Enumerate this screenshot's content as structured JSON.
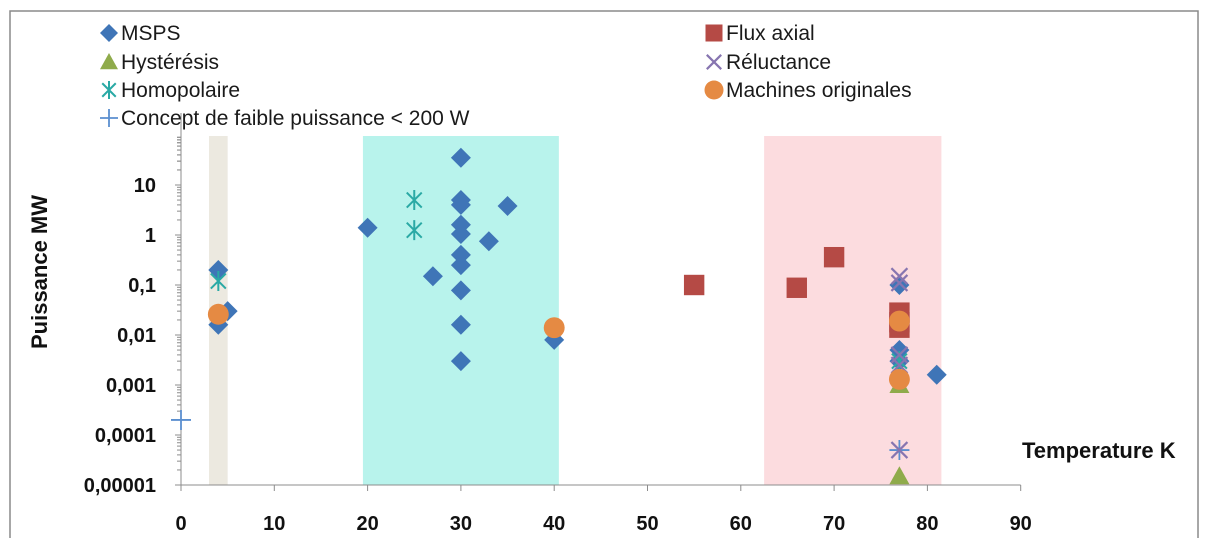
{
  "chart_data": {
    "type": "scatter",
    "xlabel": "Temperature K",
    "ylabel": "Puissance MW",
    "xlim": [
      0,
      90
    ],
    "ylim": [
      1e-05,
      100
    ],
    "y_scale": "log",
    "grid": false,
    "legend_position": "top",
    "x_ticks": [
      "0",
      "10",
      "20",
      "30",
      "40",
      "50",
      "60",
      "70",
      "80",
      "90"
    ],
    "y_ticks": [
      "0,00001",
      "0,0001",
      "0,001",
      "0,01",
      "0,1",
      "1",
      "10"
    ],
    "shaded_regions": [
      {
        "x": [
          3,
          5
        ],
        "color": "#ece9e0"
      },
      {
        "x": [
          19.5,
          40.5
        ],
        "color": "#b8f3ec"
      },
      {
        "x": [
          62.5,
          81.5
        ],
        "color": "#fcdcdf"
      }
    ],
    "series": [
      {
        "name": "MSPS",
        "marker": "diamond",
        "color": "#3f75b7",
        "points": [
          [
            4,
            0.2
          ],
          [
            4,
            0.016
          ],
          [
            5,
            0.03
          ],
          [
            20,
            1.4
          ],
          [
            27,
            0.15
          ],
          [
            30,
            35
          ],
          [
            30,
            5
          ],
          [
            30,
            4
          ],
          [
            30,
            1.6
          ],
          [
            30,
            1.05
          ],
          [
            30,
            0.4
          ],
          [
            30,
            0.25
          ],
          [
            30,
            0.078
          ],
          [
            30,
            0.016
          ],
          [
            30,
            0.003
          ],
          [
            33,
            0.75
          ],
          [
            35,
            3.8
          ],
          [
            40,
            0.008
          ],
          [
            77,
            0.1
          ],
          [
            77,
            0.005
          ],
          [
            77,
            0.003
          ],
          [
            81,
            0.0016
          ]
        ]
      },
      {
        "name": "Hystérésis",
        "marker": "triangle",
        "color": "#8fab4b",
        "points": [
          [
            77,
            0.001
          ],
          [
            77,
            1.5e-05
          ]
        ]
      },
      {
        "name": "Homopolaire",
        "marker": "asterisk",
        "color": "#2aa9a5",
        "points": [
          [
            4,
            0.12
          ],
          [
            25,
            5
          ],
          [
            25,
            1.25
          ],
          [
            77,
            0.003
          ]
        ]
      },
      {
        "name": "Concept de faible puissance < 200 W",
        "marker": "plus",
        "color": "#5b8fcf",
        "points": [
          [
            0,
            0.0002
          ],
          [
            77,
            5e-05
          ]
        ]
      },
      {
        "name": "Flux axial",
        "marker": "square",
        "color": "#b54a45",
        "points": [
          [
            55,
            0.1
          ],
          [
            66,
            0.088
          ],
          [
            70,
            0.36
          ],
          [
            77,
            0.028
          ],
          [
            77,
            0.018
          ],
          [
            77,
            0.014
          ]
        ]
      },
      {
        "name": "Réluctance",
        "marker": "x",
        "color": "#8775b0",
        "points": [
          [
            77,
            0.15
          ],
          [
            77,
            0.11
          ],
          [
            77,
            0.004
          ],
          [
            77,
            0.0025
          ],
          [
            77,
            5e-05
          ]
        ]
      },
      {
        "name": "Machines originales",
        "marker": "circle",
        "color": "#e58a43",
        "points": [
          [
            4,
            0.026
          ],
          [
            40,
            0.014
          ],
          [
            77,
            0.019
          ],
          [
            77,
            0.0013
          ]
        ]
      }
    ]
  }
}
